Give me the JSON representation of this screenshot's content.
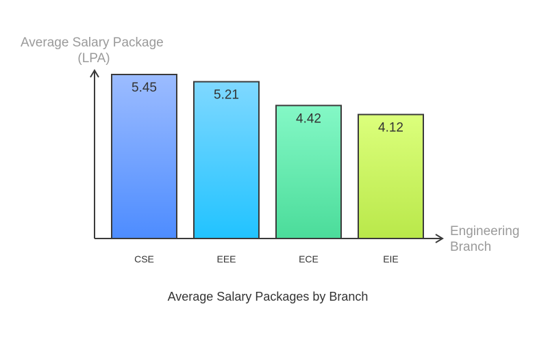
{
  "chart_data": {
    "type": "bar",
    "title": "Average Salary Packages by Branch",
    "ylabel_lines": [
      "Average Salary Package",
      "(LPA)"
    ],
    "xlabel_lines": [
      "Engineering",
      "Branch"
    ],
    "categories": [
      "CSE",
      "EEE",
      "ECE",
      "EIE"
    ],
    "values": [
      5.45,
      5.21,
      4.42,
      4.12
    ],
    "value_labels": [
      "5.45",
      "5.21",
      "4.42",
      "4.12"
    ],
    "ylim": [
      0,
      5.45
    ],
    "grid": false,
    "legend": "none"
  },
  "colors": {
    "bars": [
      [
        "#9cbcff",
        "#4d8cff"
      ],
      [
        "#7fd8ff",
        "#21c3ff"
      ],
      [
        "#84f8c6",
        "#4bdc9a"
      ],
      [
        "#dcff7c",
        "#b9e84a"
      ]
    ],
    "axis": "#3a3a3a",
    "label_gray": "#9a9a9a",
    "text_dark": "#333333"
  }
}
